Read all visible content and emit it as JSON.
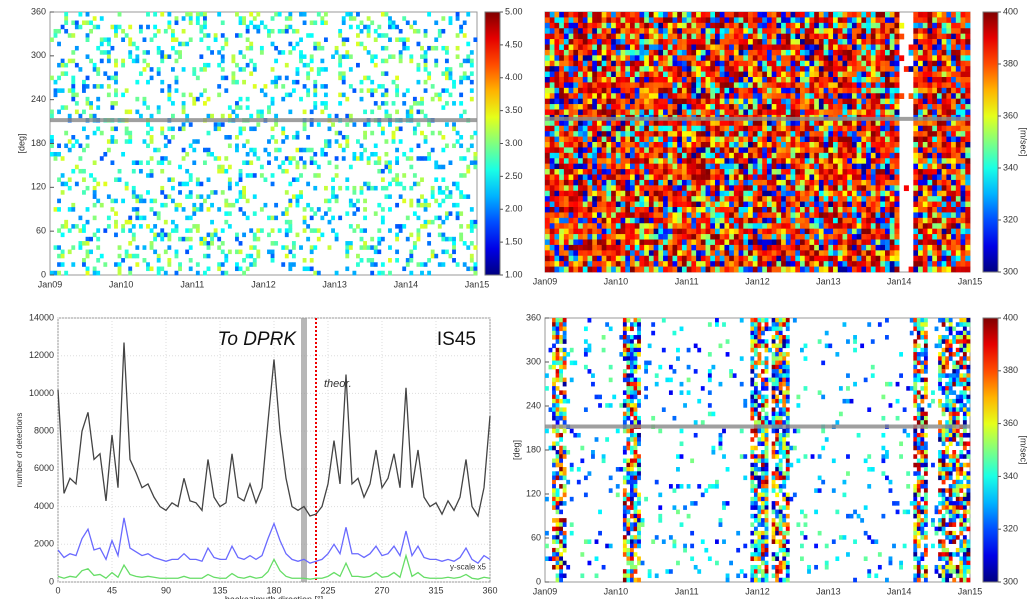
{
  "chart_data": [
    {
      "type": "heatmap",
      "ylabel": "[deg]",
      "ylim": [
        0,
        360
      ],
      "yticks": [
        0,
        60,
        120,
        180,
        240,
        300,
        360
      ],
      "xtick_labels": [
        "Jan09",
        "Jan10",
        "Jan11",
        "Jan12",
        "Jan13",
        "Jan14",
        "Jan15"
      ],
      "direction_line": 212,
      "texture": "sparse",
      "colorbar": {
        "lim": [
          1,
          5
        ],
        "ticks": [
          {
            "value": 1,
            "label": "1.00"
          },
          {
            "value": 1.5,
            "label": "1.50"
          },
          {
            "value": 2,
            "label": "2.00"
          },
          {
            "value": 2.5,
            "label": "2.50"
          },
          {
            "value": 3,
            "label": "3.00"
          },
          {
            "value": 3.5,
            "label": "3.50"
          },
          {
            "value": 4,
            "label": "4.00"
          },
          {
            "value": 4.5,
            "label": "4.50"
          },
          {
            "value": 5,
            "label": "5.00"
          }
        ]
      }
    },
    {
      "type": "heatmap",
      "ylim": [
        0,
        360
      ],
      "xtick_labels": [
        "Jan09",
        "Jan10",
        "Jan11",
        "Jan12",
        "Jan13",
        "Jan14",
        "Jan15"
      ],
      "direction_line": 212,
      "texture": "dense",
      "colorbar": {
        "lim": [
          300,
          400
        ],
        "label": "[m/sec]",
        "ticks": [
          300,
          320,
          340,
          360,
          380,
          400
        ]
      }
    },
    {
      "type": "line",
      "ylabel": "number of detections",
      "xlabel": "backazimuth direction [°]",
      "xlim": [
        0,
        360
      ],
      "xticks": [
        0,
        45,
        90,
        135,
        180,
        225,
        270,
        315,
        360
      ],
      "ylim": [
        0,
        14000
      ],
      "yticks": [
        0,
        2000,
        4000,
        6000,
        8000,
        10000,
        12000,
        14000
      ],
      "annotations": [
        "To DPRK",
        "IS45",
        "theor."
      ],
      "direction_line": 205,
      "theoretical_line": 215,
      "x": [
        0,
        5,
        10,
        15,
        20,
        25,
        30,
        35,
        40,
        45,
        50,
        55,
        60,
        65,
        70,
        75,
        80,
        85,
        90,
        95,
        100,
        105,
        110,
        115,
        120,
        125,
        130,
        135,
        140,
        145,
        150,
        155,
        160,
        165,
        170,
        175,
        180,
        185,
        190,
        195,
        200,
        205,
        210,
        215,
        220,
        225,
        230,
        235,
        240,
        245,
        250,
        255,
        260,
        265,
        270,
        275,
        280,
        285,
        290,
        295,
        300,
        305,
        310,
        315,
        320,
        325,
        330,
        335,
        340,
        345,
        350,
        355,
        360
      ],
      "series": [
        {
          "color": "#444444",
          "values": [
            10200,
            4700,
            5500,
            5200,
            8000,
            9000,
            6500,
            6800,
            4300,
            7800,
            5000,
            12700,
            6500,
            5800,
            5000,
            5200,
            4500,
            4000,
            3800,
            4200,
            4000,
            5500,
            4300,
            4200,
            3800,
            6500,
            4500,
            4000,
            4200,
            6800,
            4500,
            4300,
            5200,
            4200,
            5000,
            8500,
            11800,
            8000,
            5500,
            4000,
            3800,
            4000,
            3500,
            3600,
            4000,
            5200,
            7500,
            5200,
            11000,
            5200,
            5500,
            4500,
            5200,
            7000,
            5000,
            5500,
            6800,
            5000,
            10300,
            5000,
            7000,
            4500,
            4000,
            4200,
            3600,
            4300,
            3800,
            4500,
            6500,
            4000,
            3500,
            5000,
            8800
          ]
        },
        {
          "name": "y-scale x5",
          "color": "#6a6aff",
          "values": [
            1700,
            1300,
            1500,
            1400,
            2300,
            2800,
            1700,
            1800,
            1200,
            2200,
            1400,
            3400,
            1800,
            1600,
            1400,
            1500,
            1300,
            1200,
            1100,
            1200,
            1200,
            1500,
            1200,
            1200,
            1100,
            1800,
            1300,
            1200,
            1200,
            1900,
            1300,
            1200,
            1400,
            1200,
            1400,
            2300,
            3100,
            2200,
            1500,
            1200,
            1100,
            1200,
            1000,
            1100,
            1200,
            1500,
            2000,
            1500,
            2900,
            1500,
            1500,
            1300,
            1500,
            1900,
            1400,
            1500,
            1900,
            1400,
            2700,
            1400,
            1900,
            1300,
            1200,
            1200,
            1100,
            1200,
            1100,
            1300,
            1800,
            1200,
            1000,
            1400,
            1200
          ]
        },
        {
          "color": "#66dd66",
          "values": [
            300,
            200,
            300,
            250,
            600,
            700,
            350,
            400,
            200,
            500,
            250,
            900,
            400,
            300,
            250,
            300,
            250,
            200,
            200,
            200,
            200,
            300,
            200,
            200,
            200,
            400,
            250,
            200,
            200,
            450,
            250,
            200,
            300,
            200,
            250,
            550,
            1200,
            600,
            300,
            200,
            200,
            200,
            150,
            200,
            200,
            300,
            500,
            300,
            1000,
            300,
            300,
            250,
            300,
            500,
            250,
            300,
            500,
            250,
            1400,
            300,
            500,
            250,
            200,
            200,
            200,
            250,
            200,
            250,
            400,
            200,
            150,
            250,
            200
          ]
        }
      ]
    },
    {
      "type": "heatmap",
      "ylabel": "[deg]",
      "ylim": [
        0,
        360
      ],
      "yticks": [
        0,
        60,
        120,
        180,
        240,
        300,
        360
      ],
      "xtick_labels": [
        "Jan09",
        "Jan10",
        "Jan11",
        "Jan12",
        "Jan13",
        "Jan14",
        "Jan15"
      ],
      "direction_line": 212,
      "texture": "banded",
      "colorbar": {
        "lim": [
          300,
          400
        ],
        "label": "[m/sec]",
        "ticks": [
          300,
          320,
          340,
          360,
          380,
          400
        ]
      }
    }
  ]
}
